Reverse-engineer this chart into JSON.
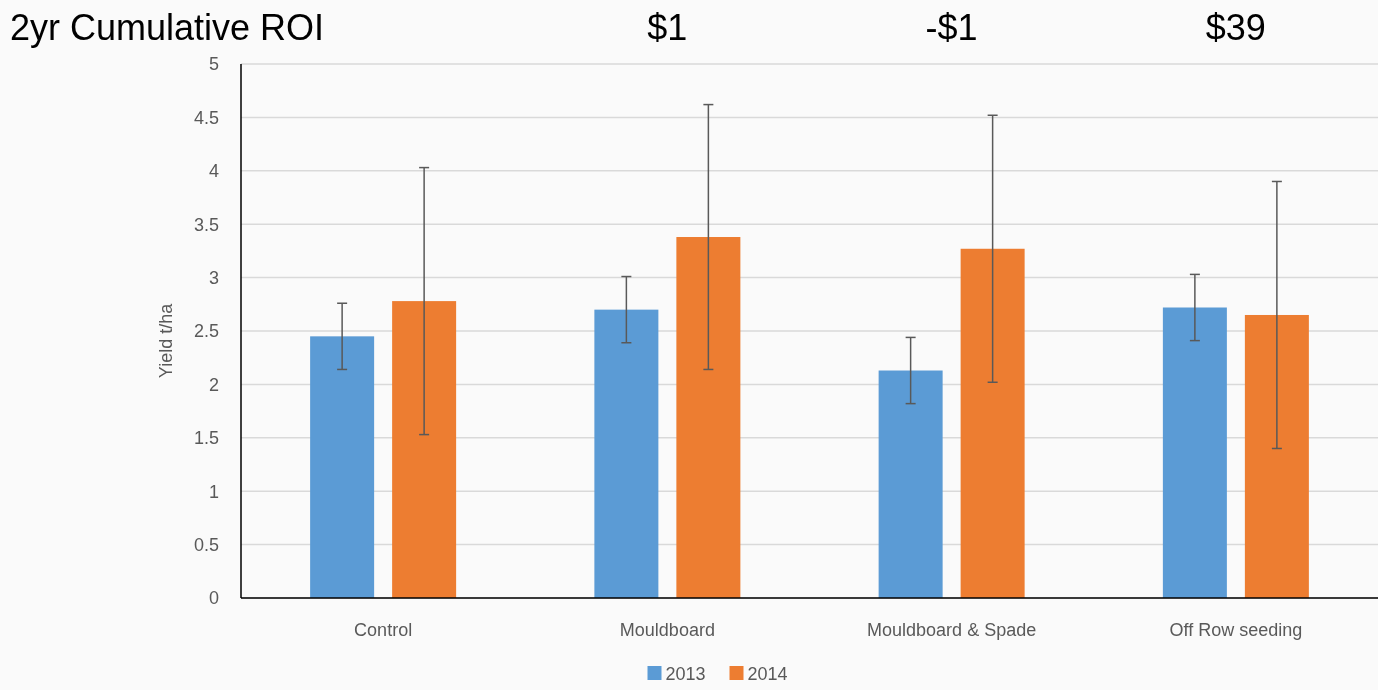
{
  "chart_data": {
    "type": "bar",
    "title": "2yr Cumulative ROI",
    "ylabel": "Yield t/ha",
    "categories": [
      "Control",
      "Mouldboard",
      "Mouldboard & Spade",
      "Off Row seeding"
    ],
    "series": [
      {
        "name": "2013",
        "color": "#5b9bd5",
        "values": [
          2.45,
          2.7,
          2.13,
          2.72
        ],
        "errors": [
          0.31,
          0.31,
          0.31,
          0.31
        ]
      },
      {
        "name": "2014",
        "color": "#ed7d31",
        "values": [
          2.78,
          3.38,
          3.27,
          2.65
        ],
        "errors": [
          1.25,
          1.24,
          1.25,
          1.25
        ]
      }
    ],
    "ylim": [
      0,
      5
    ],
    "yticks": [
      0,
      0.5,
      1,
      1.5,
      2,
      2.5,
      3,
      3.5,
      4,
      4.5,
      5
    ],
    "grid": "y",
    "legend": "bottom",
    "annotations": [
      "$1",
      "-$1",
      "$39"
    ]
  }
}
